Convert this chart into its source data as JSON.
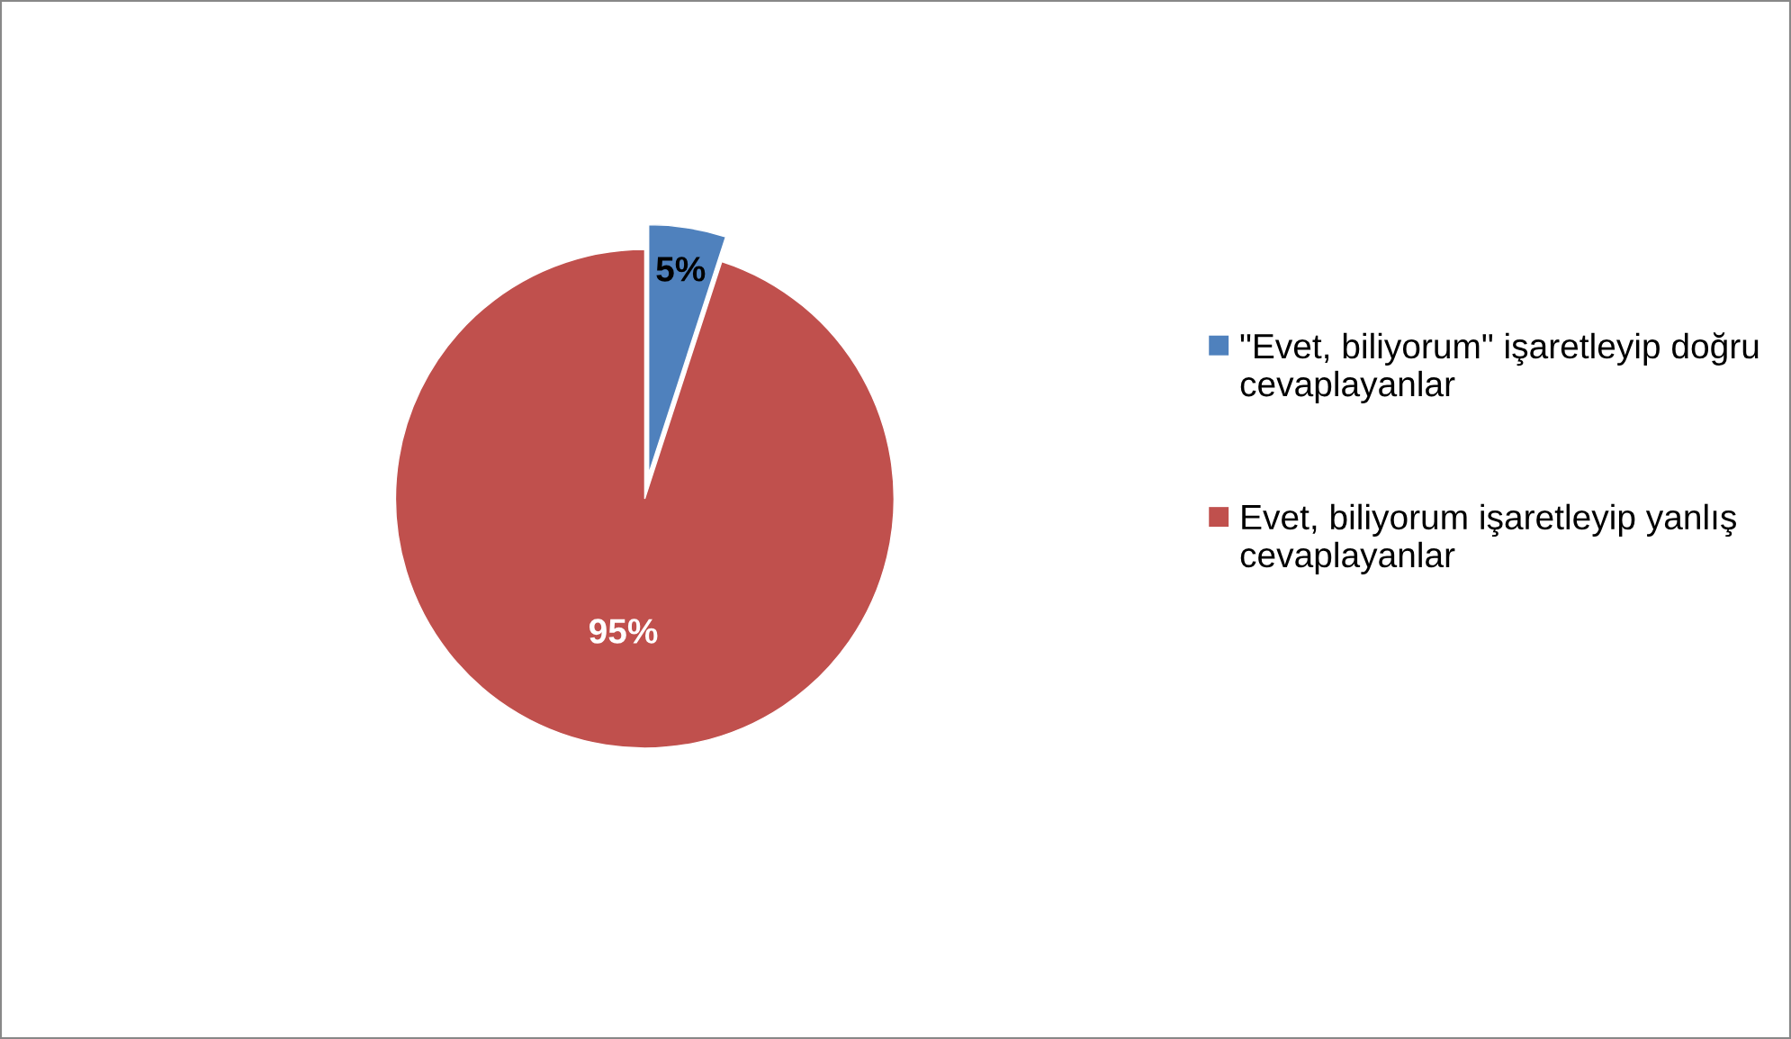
{
  "chart_data": {
    "type": "pie",
    "categories": [
      "\"Evet, biliyorum\" işaretleyip doğru cevaplayanlar",
      "Evet, biliyorum işaretleyip yanlış cevaplayanlar"
    ],
    "values": [
      5,
      95
    ],
    "colors": [
      "#4f81bd",
      "#c0504d"
    ],
    "value_labels": [
      "5%",
      "95%"
    ],
    "legend": "right"
  }
}
